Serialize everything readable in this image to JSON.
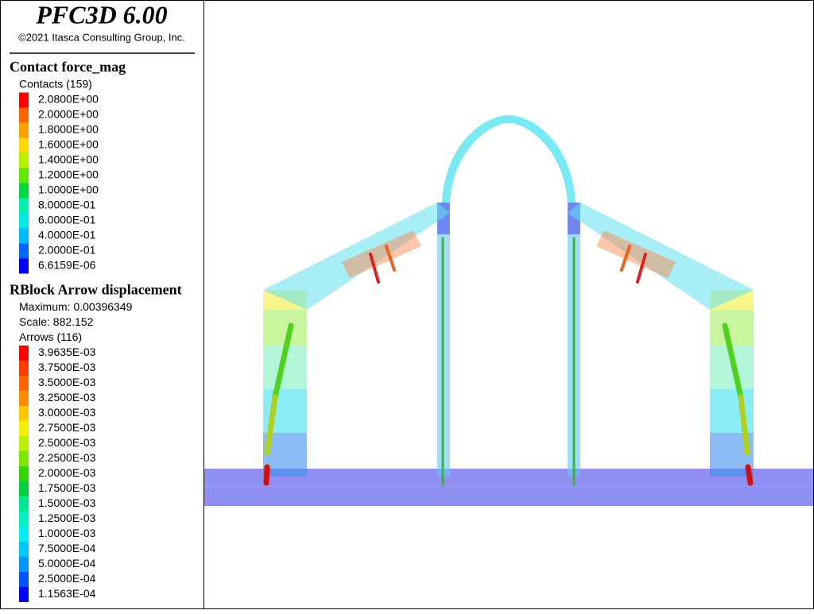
{
  "header": {
    "title": "PFC3D 6.00",
    "copyright": "©2021 Itasca Consulting Group, Inc."
  },
  "legends": [
    {
      "title": "Contact force_mag",
      "info": [
        "Contacts (159)"
      ],
      "items": [
        {
          "label": "2.0800E+00",
          "color": "#ff0000"
        },
        {
          "label": "2.0000E+00",
          "color": "#ff6400"
        },
        {
          "label": "1.8000E+00",
          "color": "#ffa000"
        },
        {
          "label": "1.6000E+00",
          "color": "#ffd800"
        },
        {
          "label": "1.4000E+00",
          "color": "#b8f000"
        },
        {
          "label": "1.2000E+00",
          "color": "#60e800"
        },
        {
          "label": "1.0000E+00",
          "color": "#00d840"
        },
        {
          "label": "8.0000E-01",
          "color": "#00f0b0"
        },
        {
          "label": "6.0000E-01",
          "color": "#00e8e8"
        },
        {
          "label": "4.0000E-01",
          "color": "#00b8ff"
        },
        {
          "label": "2.0000E-01",
          "color": "#0064ff"
        },
        {
          "label": "6.6159E-06",
          "color": "#0000ff"
        }
      ]
    },
    {
      "title": "RBlock Arrow displacement",
      "info": [
        "Maximum: 0.00396349",
        "Scale: 882.152",
        "Arrows (116)"
      ],
      "items": [
        {
          "label": "3.9635E-03",
          "color": "#ff0000"
        },
        {
          "label": "3.7500E-03",
          "color": "#ff3c00"
        },
        {
          "label": "3.5000E-03",
          "color": "#ff6400"
        },
        {
          "label": "3.2500E-03",
          "color": "#ff8c00"
        },
        {
          "label": "3.0000E-03",
          "color": "#ffc800"
        },
        {
          "label": "2.7500E-03",
          "color": "#f0f000"
        },
        {
          "label": "2.5000E-03",
          "color": "#b8f000"
        },
        {
          "label": "2.2500E-03",
          "color": "#80e800"
        },
        {
          "label": "2.0000E-03",
          "color": "#30d800"
        },
        {
          "label": "1.7500E-03",
          "color": "#00d040"
        },
        {
          "label": "1.5000E-03",
          "color": "#00e890"
        },
        {
          "label": "1.2500E-03",
          "color": "#00f0c8"
        },
        {
          "label": "1.0000E-03",
          "color": "#00f0f0"
        },
        {
          "label": "7.5000E-04",
          "color": "#00c8ff"
        },
        {
          "label": "5.0000E-04",
          "color": "#0096ff"
        },
        {
          "label": "2.5000E-04",
          "color": "#0050ff"
        },
        {
          "label": "1.1563E-04",
          "color": "#0000ff"
        }
      ]
    }
  ]
}
